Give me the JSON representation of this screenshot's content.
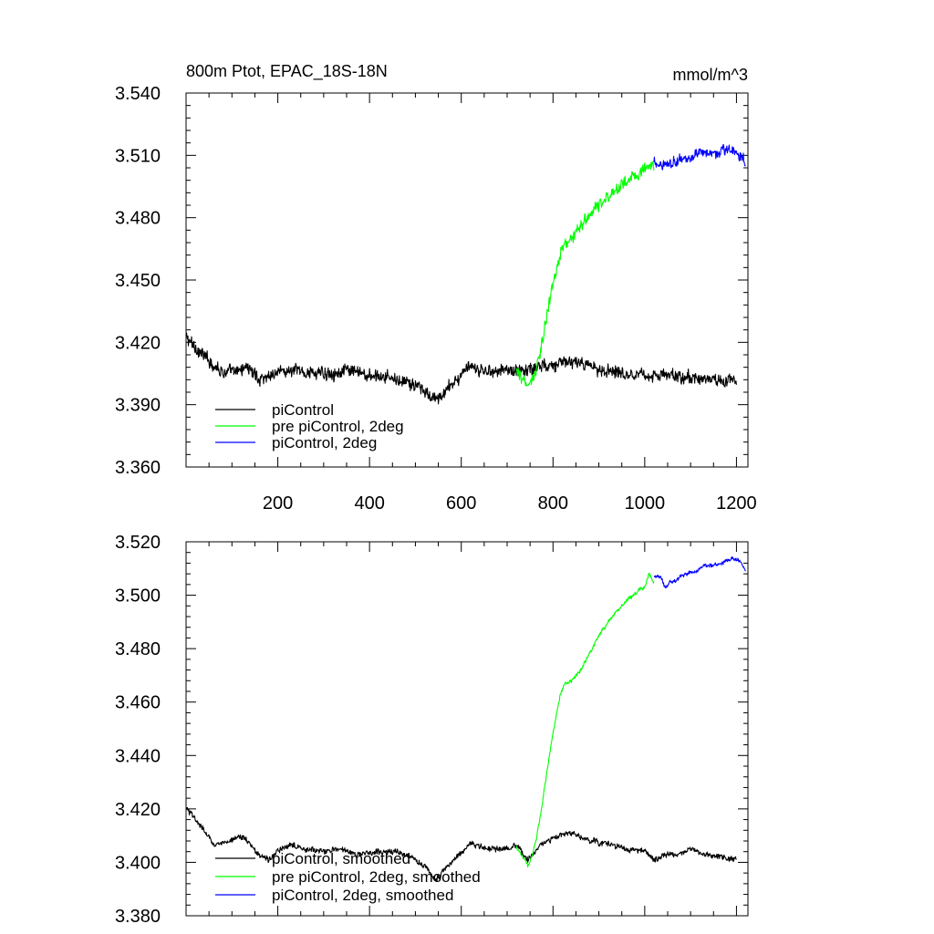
{
  "chart_data": [
    {
      "type": "line",
      "title": "800m Ptot, EPAC_18S-18N",
      "units": "mmol/m^3",
      "xlim": [
        0,
        1225
      ],
      "ylim": [
        3.36,
        3.54
      ],
      "xticks": [
        200,
        400,
        600,
        800,
        1000,
        1200
      ],
      "xtick_labels": [
        "200",
        "400",
        "600",
        "800",
        "1000",
        "1200"
      ],
      "yticks": [
        3.36,
        3.39,
        3.42,
        3.45,
        3.48,
        3.51,
        3.54
      ],
      "ytick_labels": [
        "3.360",
        "3.390",
        "3.420",
        "3.450",
        "3.480",
        "3.510",
        "3.540"
      ],
      "legend_position": "bottom-left",
      "series": [
        {
          "name": "piControl",
          "color": "#000000",
          "noise": 0.0035,
          "x": [
            1,
            40,
            80,
            110,
            130,
            160,
            200,
            240,
            300,
            360,
            400,
            450,
            500,
            545,
            580,
            610,
            650,
            700,
            725,
            745,
            780,
            840,
            900,
            950,
            1000,
            1050,
            1100,
            1150,
            1200
          ],
          "y": [
            3.422,
            3.413,
            3.406,
            3.405,
            3.409,
            3.402,
            3.406,
            3.406,
            3.405,
            3.406,
            3.404,
            3.403,
            3.399,
            3.392,
            3.4,
            3.407,
            3.406,
            3.407,
            3.406,
            3.407,
            3.409,
            3.411,
            3.407,
            3.406,
            3.404,
            3.404,
            3.403,
            3.402,
            3.402
          ]
        },
        {
          "name": "pre piControl, 2deg",
          "color": "#00ff00",
          "noise": 0.0035,
          "x": [
            720,
            735,
            745,
            760,
            775,
            790,
            805,
            820,
            840,
            860,
            880,
            900,
            920,
            940,
            960,
            980,
            1000,
            1020
          ],
          "y": [
            3.405,
            3.402,
            3.399,
            3.404,
            3.418,
            3.437,
            3.452,
            3.466,
            3.47,
            3.476,
            3.481,
            3.486,
            3.49,
            3.494,
            3.498,
            3.501,
            3.503,
            3.506
          ]
        },
        {
          "name": "piControl, 2deg",
          "color": "#0000ff",
          "noise": 0.003,
          "x": [
            1020,
            1040,
            1060,
            1080,
            1100,
            1120,
            1140,
            1160,
            1180,
            1200,
            1220
          ],
          "y": [
            3.506,
            3.506,
            3.507,
            3.508,
            3.509,
            3.51,
            3.512,
            3.511,
            3.513,
            3.511,
            3.508
          ]
        }
      ]
    },
    {
      "type": "line",
      "title": "",
      "units": "",
      "xlim": [
        0,
        1225
      ],
      "ylim": [
        3.38,
        3.52
      ],
      "xticks": [
        200,
        400,
        600,
        800,
        1000,
        1200
      ],
      "yticks": [
        3.38,
        3.4,
        3.42,
        3.44,
        3.46,
        3.48,
        3.5,
        3.52
      ],
      "ytick_labels": [
        "3.380",
        "3.400",
        "3.420",
        "3.440",
        "3.460",
        "3.480",
        "3.500",
        "3.520"
      ],
      "legend_position": "bottom-left",
      "series": [
        {
          "name": "piControl, smoothed",
          "color": "#000000",
          "noise": 0.0012,
          "x": [
            1,
            30,
            60,
            90,
            110,
            130,
            150,
            180,
            200,
            230,
            260,
            300,
            340,
            380,
            420,
            460,
            500,
            530,
            545,
            560,
            590,
            620,
            660,
            700,
            720,
            745,
            770,
            800,
            840,
            880,
            920,
            960,
            1000,
            1020,
            1050,
            1080,
            1100,
            1130,
            1160,
            1200
          ],
          "y": [
            3.42,
            3.414,
            3.407,
            3.407,
            3.41,
            3.409,
            3.404,
            3.401,
            3.404,
            3.407,
            3.405,
            3.404,
            3.405,
            3.403,
            3.404,
            3.404,
            3.401,
            3.397,
            3.393,
            3.397,
            3.402,
            3.407,
            3.405,
            3.405,
            3.406,
            3.401,
            3.406,
            3.409,
            3.411,
            3.408,
            3.407,
            3.405,
            3.404,
            3.401,
            3.403,
            3.403,
            3.405,
            3.403,
            3.402,
            3.401
          ]
        },
        {
          "name": "pre piControl, 2deg, smoothed",
          "color": "#00ff00",
          "noise": 0.0008,
          "x": [
            720,
            735,
            745,
            755,
            765,
            775,
            785,
            795,
            805,
            815,
            825,
            840,
            860,
            880,
            900,
            920,
            940,
            960,
            980,
            1000,
            1010,
            1020
          ],
          "y": [
            3.406,
            3.402,
            3.399,
            3.402,
            3.41,
            3.42,
            3.432,
            3.443,
            3.453,
            3.462,
            3.467,
            3.468,
            3.472,
            3.478,
            3.485,
            3.49,
            3.494,
            3.498,
            3.501,
            3.503,
            3.508,
            3.505
          ]
        },
        {
          "name": "piControl, 2deg, smoothed",
          "color": "#0000ff",
          "noise": 0.0008,
          "x": [
            1020,
            1035,
            1045,
            1055,
            1070,
            1090,
            1110,
            1130,
            1150,
            1170,
            1190,
            1205,
            1220
          ],
          "y": [
            3.507,
            3.507,
            3.503,
            3.505,
            3.506,
            3.508,
            3.509,
            3.511,
            3.511,
            3.512,
            3.514,
            3.513,
            3.509
          ]
        }
      ]
    }
  ]
}
